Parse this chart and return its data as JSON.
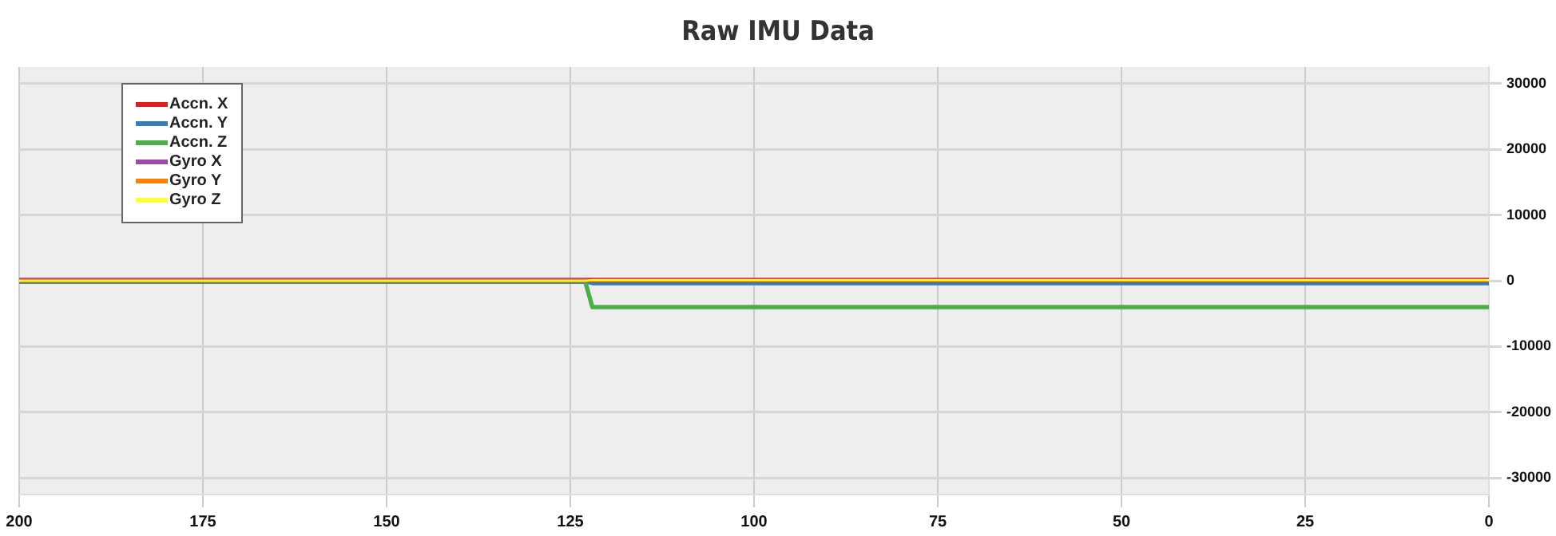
{
  "chart_data": {
    "type": "line",
    "title": "Raw IMU Data",
    "x": [
      200,
      123,
      122,
      0
    ],
    "series": [
      {
        "name": "Accn. X",
        "color": "#e41a1c",
        "values": [
          0,
          0,
          0,
          0
        ]
      },
      {
        "name": "Accn. Y",
        "color": "#377eb8",
        "values": [
          0,
          0,
          -300,
          -300
        ]
      },
      {
        "name": "Accn. Z",
        "color": "#4daf4a",
        "values": [
          0,
          0,
          -4000,
          -4000
        ]
      },
      {
        "name": "Gyro X",
        "color": "#984ea3",
        "values": [
          0,
          0,
          0,
          0
        ]
      },
      {
        "name": "Gyro Y",
        "color": "#ff7f00",
        "values": [
          0,
          0,
          100,
          100
        ]
      },
      {
        "name": "Gyro Z",
        "color": "#ffff33",
        "values": [
          0,
          0,
          100,
          100
        ]
      }
    ],
    "xlim": [
      200,
      0
    ],
    "xticks": [
      200,
      175,
      150,
      125,
      100,
      75,
      50,
      25,
      0
    ],
    "ylim": [
      -32500,
      32500
    ],
    "yticks": [
      -30000,
      -20000,
      -10000,
      0,
      10000,
      20000,
      30000
    ],
    "grid": true,
    "legend": "left",
    "marker": "none",
    "line_style": "solid"
  }
}
